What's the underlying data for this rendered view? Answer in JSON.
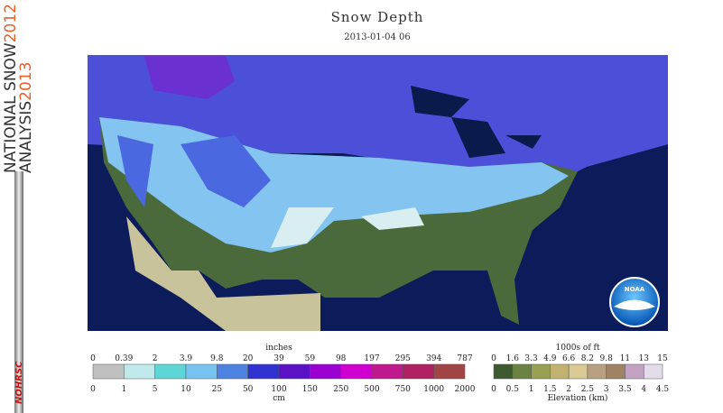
{
  "sidebar": {
    "line1": "NATIONAL SNOW",
    "year1": "2012",
    "line2": "ANALYSIS",
    "year2": "2013",
    "badge": "NOHRSC"
  },
  "header": {
    "title": "Snow Depth",
    "subtitle": "2013-01-04 06"
  },
  "map": {
    "logo": "NOAA"
  },
  "snow_legend": {
    "top_label": "inches",
    "bottom_label": "cm",
    "top_ticks": [
      "0",
      "0.39",
      "2",
      "3.9",
      "9.8",
      "20",
      "39",
      "59",
      "98",
      "197",
      "295",
      "394",
      "787"
    ],
    "bottom_ticks": [
      "0",
      "1",
      "5",
      "10",
      "25",
      "50",
      "100",
      "150",
      "250",
      "500",
      "750",
      "1000",
      "2000"
    ]
  },
  "elevation_legend": {
    "top_label": "1000s of ft",
    "bottom_label": "Elevation (km)",
    "top_ticks": [
      "0",
      "1.6",
      "3.3",
      "4.9",
      "6.6",
      "8.2",
      "9.8",
      "11",
      "13",
      "15"
    ],
    "bottom_ticks": [
      "0",
      "0.5",
      "1",
      "1.5",
      "2",
      "2.5",
      "3",
      "3.5",
      "4",
      "4.5"
    ]
  }
}
